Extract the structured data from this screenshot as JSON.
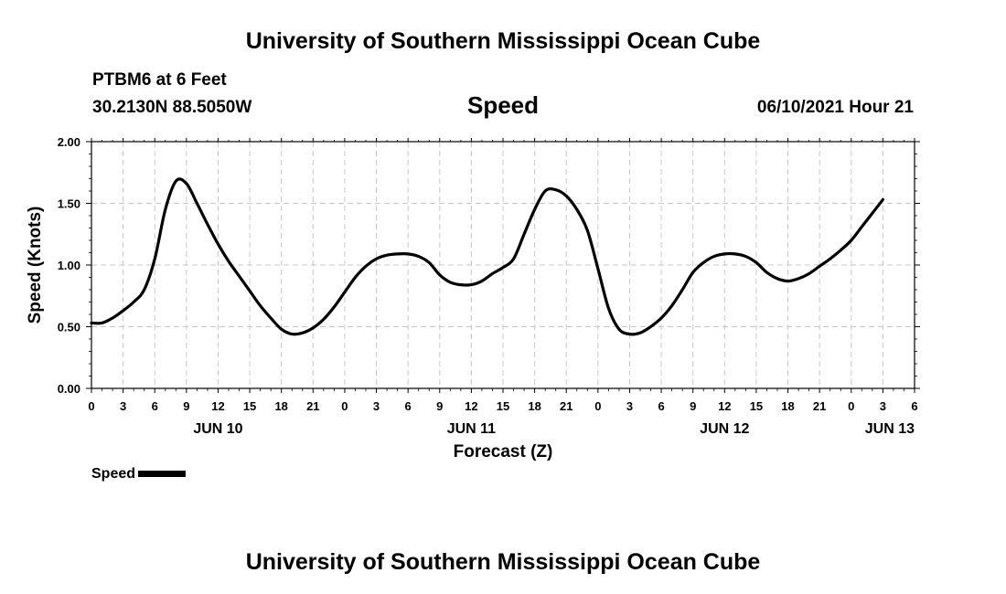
{
  "page": {
    "title_top": "University of Southern Mississippi Ocean Cube",
    "title_bottom": "University of Southern Mississippi Ocean Cube",
    "station": "PTBM6 at 6 Feet",
    "coords": "30.2130N  88.5050W",
    "datetime": "06/10/2021 Hour 21"
  },
  "chart_data": {
    "type": "line",
    "title": "Speed",
    "xlabel": "Forecast (Z)",
    "ylabel": "Speed (Knots)",
    "ylim": [
      0,
      2
    ],
    "xlim": [
      0,
      78
    ],
    "y_ticks": [
      "0.00",
      "0.50",
      "1.00",
      "1.50",
      "2.00"
    ],
    "y_tick_values": [
      0,
      0.5,
      1.0,
      1.5,
      2.0
    ],
    "x_tick_hours": [
      0,
      3,
      6,
      9,
      12,
      15,
      18,
      21,
      24,
      27,
      30,
      33,
      36,
      39,
      42,
      45,
      48,
      51,
      54,
      57,
      60,
      63,
      66,
      69,
      72,
      75,
      78
    ],
    "x_tick_labels": [
      "0",
      "3",
      "6",
      "9",
      "12",
      "15",
      "18",
      "21",
      "0",
      "3",
      "6",
      "9",
      "12",
      "15",
      "18",
      "21",
      "0",
      "3",
      "6",
      "9",
      "12",
      "15",
      "18",
      "21",
      "0",
      "3",
      "6"
    ],
    "day_labels": [
      {
        "hour": 12,
        "label": "JUN 10"
      },
      {
        "hour": 36,
        "label": "JUN 11"
      },
      {
        "hour": 60,
        "label": "JUN 12"
      },
      {
        "hour": 78,
        "label": "JUN 13"
      }
    ],
    "grid": true,
    "legend": {
      "label": "Speed",
      "placement": "bottom-left"
    },
    "series": [
      {
        "name": "Speed",
        "color": "#000000",
        "points": [
          [
            0,
            0.53
          ],
          [
            1,
            0.53
          ],
          [
            2,
            0.57
          ],
          [
            3,
            0.63
          ],
          [
            4,
            0.7
          ],
          [
            5,
            0.8
          ],
          [
            6,
            1.05
          ],
          [
            7,
            1.45
          ],
          [
            8,
            1.68
          ],
          [
            9,
            1.66
          ],
          [
            10,
            1.5
          ],
          [
            11,
            1.33
          ],
          [
            12,
            1.17
          ],
          [
            13,
            1.03
          ],
          [
            14,
            0.91
          ],
          [
            15,
            0.79
          ],
          [
            16,
            0.67
          ],
          [
            17,
            0.57
          ],
          [
            18,
            0.48
          ],
          [
            19,
            0.44
          ],
          [
            20,
            0.45
          ],
          [
            21,
            0.49
          ],
          [
            22,
            0.56
          ],
          [
            23,
            0.66
          ],
          [
            24,
            0.78
          ],
          [
            25,
            0.9
          ],
          [
            26,
            0.99
          ],
          [
            27,
            1.05
          ],
          [
            28,
            1.08
          ],
          [
            29,
            1.09
          ],
          [
            30,
            1.09
          ],
          [
            31,
            1.07
          ],
          [
            32,
            1.02
          ],
          [
            33,
            0.92
          ],
          [
            34,
            0.86
          ],
          [
            35,
            0.84
          ],
          [
            36,
            0.84
          ],
          [
            37,
            0.87
          ],
          [
            38,
            0.93
          ],
          [
            39,
            0.98
          ],
          [
            40,
            1.05
          ],
          [
            41,
            1.25
          ],
          [
            42,
            1.45
          ],
          [
            43,
            1.6
          ],
          [
            44,
            1.61
          ],
          [
            45,
            1.56
          ],
          [
            46,
            1.45
          ],
          [
            47,
            1.28
          ],
          [
            48,
            0.97
          ],
          [
            49,
            0.65
          ],
          [
            50,
            0.48
          ],
          [
            51,
            0.44
          ],
          [
            52,
            0.45
          ],
          [
            53,
            0.5
          ],
          [
            54,
            0.57
          ],
          [
            55,
            0.67
          ],
          [
            56,
            0.8
          ],
          [
            57,
            0.94
          ],
          [
            58,
            1.02
          ],
          [
            59,
            1.07
          ],
          [
            60,
            1.09
          ],
          [
            61,
            1.09
          ],
          [
            62,
            1.07
          ],
          [
            63,
            1.02
          ],
          [
            64,
            0.94
          ],
          [
            65,
            0.89
          ],
          [
            66,
            0.87
          ],
          [
            67,
            0.89
          ],
          [
            68,
            0.93
          ],
          [
            69,
            0.99
          ],
          [
            70,
            1.05
          ],
          [
            71,
            1.12
          ],
          [
            72,
            1.2
          ],
          [
            73,
            1.31
          ],
          [
            74,
            1.42
          ],
          [
            75,
            1.53
          ]
        ]
      }
    ]
  }
}
